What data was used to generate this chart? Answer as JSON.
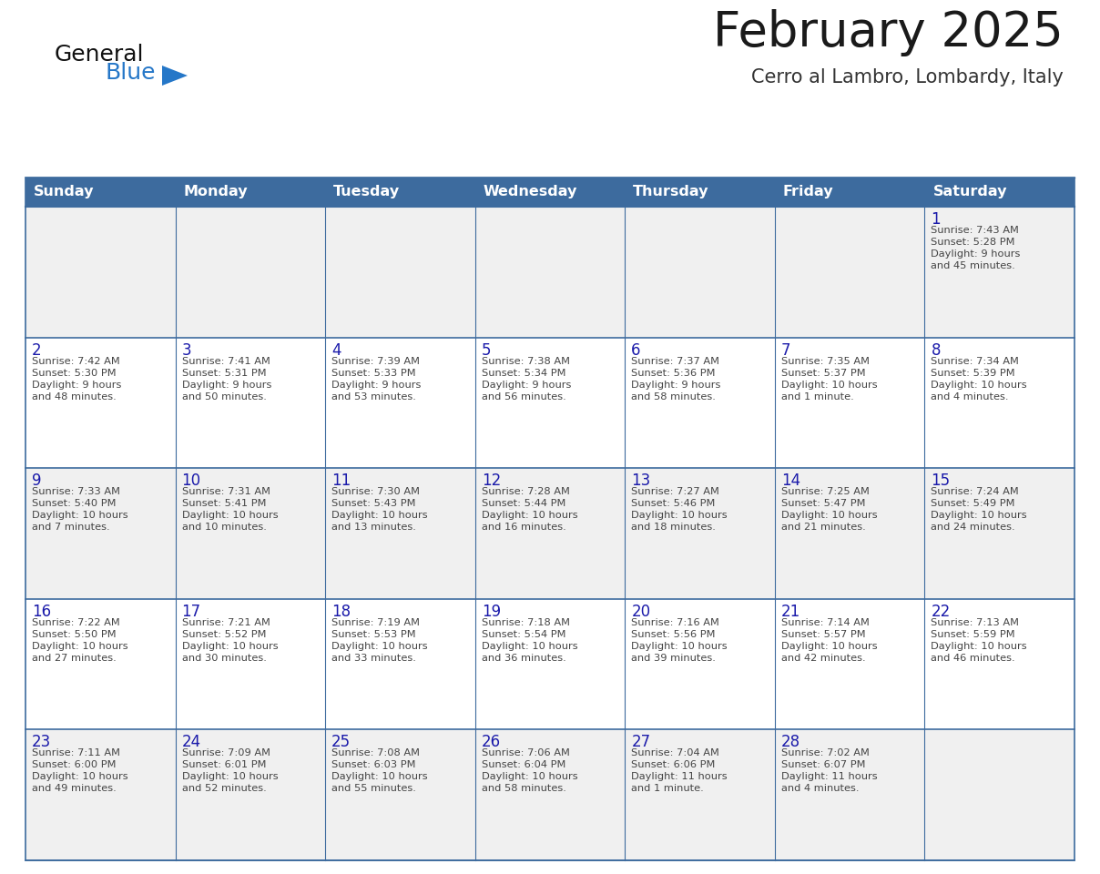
{
  "title": "February 2025",
  "subtitle": "Cerro al Lambro, Lombardy, Italy",
  "days_of_week": [
    "Sunday",
    "Monday",
    "Tuesday",
    "Wednesday",
    "Thursday",
    "Friday",
    "Saturday"
  ],
  "header_bg": "#3d6b9e",
  "header_fg": "#ffffff",
  "cell_bg_light": "#f0f0f0",
  "cell_bg_white": "#ffffff",
  "cell_border": "#3d6b9e",
  "day_number_color": "#1a1aaa",
  "info_color": "#444444",
  "title_color": "#1a1a1a",
  "subtitle_color": "#333333",
  "logo_text_color": "#111111",
  "logo_blue_color": "#2577c8",
  "logo_triangle_color": "#2577c8",
  "weeks": [
    {
      "bg": "light",
      "days": [
        {
          "date": "",
          "sunrise": "",
          "sunset": "",
          "daylight": ""
        },
        {
          "date": "",
          "sunrise": "",
          "sunset": "",
          "daylight": ""
        },
        {
          "date": "",
          "sunrise": "",
          "sunset": "",
          "daylight": ""
        },
        {
          "date": "",
          "sunrise": "",
          "sunset": "",
          "daylight": ""
        },
        {
          "date": "",
          "sunrise": "",
          "sunset": "",
          "daylight": ""
        },
        {
          "date": "",
          "sunrise": "",
          "sunset": "",
          "daylight": ""
        },
        {
          "date": "1",
          "sunrise": "7:43 AM",
          "sunset": "5:28 PM",
          "daylight": "9 hours\nand 45 minutes."
        }
      ]
    },
    {
      "bg": "white",
      "days": [
        {
          "date": "2",
          "sunrise": "7:42 AM",
          "sunset": "5:30 PM",
          "daylight": "9 hours\nand 48 minutes."
        },
        {
          "date": "3",
          "sunrise": "7:41 AM",
          "sunset": "5:31 PM",
          "daylight": "9 hours\nand 50 minutes."
        },
        {
          "date": "4",
          "sunrise": "7:39 AM",
          "sunset": "5:33 PM",
          "daylight": "9 hours\nand 53 minutes."
        },
        {
          "date": "5",
          "sunrise": "7:38 AM",
          "sunset": "5:34 PM",
          "daylight": "9 hours\nand 56 minutes."
        },
        {
          "date": "6",
          "sunrise": "7:37 AM",
          "sunset": "5:36 PM",
          "daylight": "9 hours\nand 58 minutes."
        },
        {
          "date": "7",
          "sunrise": "7:35 AM",
          "sunset": "5:37 PM",
          "daylight": "10 hours\nand 1 minute."
        },
        {
          "date": "8",
          "sunrise": "7:34 AM",
          "sunset": "5:39 PM",
          "daylight": "10 hours\nand 4 minutes."
        }
      ]
    },
    {
      "bg": "light",
      "days": [
        {
          "date": "9",
          "sunrise": "7:33 AM",
          "sunset": "5:40 PM",
          "daylight": "10 hours\nand 7 minutes."
        },
        {
          "date": "10",
          "sunrise": "7:31 AM",
          "sunset": "5:41 PM",
          "daylight": "10 hours\nand 10 minutes."
        },
        {
          "date": "11",
          "sunrise": "7:30 AM",
          "sunset": "5:43 PM",
          "daylight": "10 hours\nand 13 minutes."
        },
        {
          "date": "12",
          "sunrise": "7:28 AM",
          "sunset": "5:44 PM",
          "daylight": "10 hours\nand 16 minutes."
        },
        {
          "date": "13",
          "sunrise": "7:27 AM",
          "sunset": "5:46 PM",
          "daylight": "10 hours\nand 18 minutes."
        },
        {
          "date": "14",
          "sunrise": "7:25 AM",
          "sunset": "5:47 PM",
          "daylight": "10 hours\nand 21 minutes."
        },
        {
          "date": "15",
          "sunrise": "7:24 AM",
          "sunset": "5:49 PM",
          "daylight": "10 hours\nand 24 minutes."
        }
      ]
    },
    {
      "bg": "white",
      "days": [
        {
          "date": "16",
          "sunrise": "7:22 AM",
          "sunset": "5:50 PM",
          "daylight": "10 hours\nand 27 minutes."
        },
        {
          "date": "17",
          "sunrise": "7:21 AM",
          "sunset": "5:52 PM",
          "daylight": "10 hours\nand 30 minutes."
        },
        {
          "date": "18",
          "sunrise": "7:19 AM",
          "sunset": "5:53 PM",
          "daylight": "10 hours\nand 33 minutes."
        },
        {
          "date": "19",
          "sunrise": "7:18 AM",
          "sunset": "5:54 PM",
          "daylight": "10 hours\nand 36 minutes."
        },
        {
          "date": "20",
          "sunrise": "7:16 AM",
          "sunset": "5:56 PM",
          "daylight": "10 hours\nand 39 minutes."
        },
        {
          "date": "21",
          "sunrise": "7:14 AM",
          "sunset": "5:57 PM",
          "daylight": "10 hours\nand 42 minutes."
        },
        {
          "date": "22",
          "sunrise": "7:13 AM",
          "sunset": "5:59 PM",
          "daylight": "10 hours\nand 46 minutes."
        }
      ]
    },
    {
      "bg": "light",
      "days": [
        {
          "date": "23",
          "sunrise": "7:11 AM",
          "sunset": "6:00 PM",
          "daylight": "10 hours\nand 49 minutes."
        },
        {
          "date": "24",
          "sunrise": "7:09 AM",
          "sunset": "6:01 PM",
          "daylight": "10 hours\nand 52 minutes."
        },
        {
          "date": "25",
          "sunrise": "7:08 AM",
          "sunset": "6:03 PM",
          "daylight": "10 hours\nand 55 minutes."
        },
        {
          "date": "26",
          "sunrise": "7:06 AM",
          "sunset": "6:04 PM",
          "daylight": "10 hours\nand 58 minutes."
        },
        {
          "date": "27",
          "sunrise": "7:04 AM",
          "sunset": "6:06 PM",
          "daylight": "11 hours\nand 1 minute."
        },
        {
          "date": "28",
          "sunrise": "7:02 AM",
          "sunset": "6:07 PM",
          "daylight": "11 hours\nand 4 minutes."
        },
        {
          "date": "",
          "sunrise": "",
          "sunset": "",
          "daylight": ""
        }
      ]
    }
  ]
}
